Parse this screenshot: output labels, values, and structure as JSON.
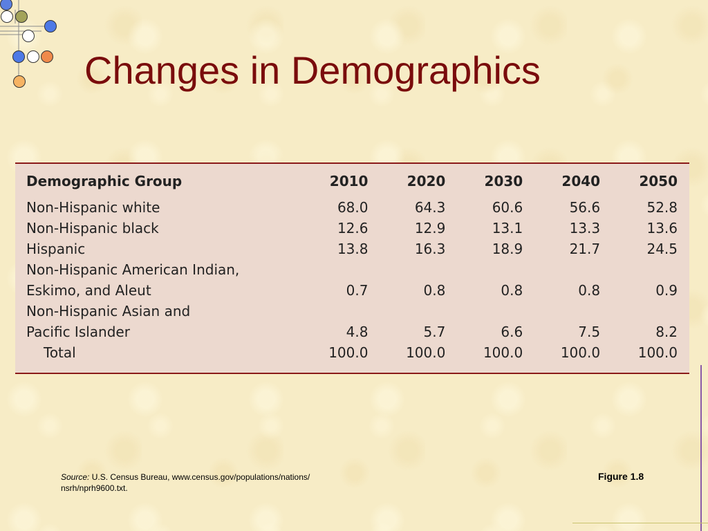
{
  "slide": {
    "title": "Changes in Demographics"
  },
  "table": {
    "headers": [
      "Demographic Group",
      "2010",
      "2020",
      "2030",
      "2040",
      "2050"
    ],
    "rows": [
      {
        "label_lines": [
          "Non-Hispanic white"
        ],
        "values": [
          "68.0",
          "64.3",
          "60.6",
          "56.6",
          "52.8"
        ]
      },
      {
        "label_lines": [
          "Non-Hispanic black"
        ],
        "values": [
          "12.6",
          "12.9",
          "13.1",
          "13.3",
          "13.6"
        ]
      },
      {
        "label_lines": [
          "Hispanic"
        ],
        "values": [
          "13.8",
          "16.3",
          "18.9",
          "21.7",
          "24.5"
        ]
      },
      {
        "label_lines": [
          "Non-Hispanic American Indian,",
          "Eskimo, and Aleut"
        ],
        "values": [
          "0.7",
          "0.8",
          "0.8",
          "0.8",
          "0.9"
        ]
      },
      {
        "label_lines": [
          "Non-Hispanic Asian and",
          "Pacific Islander"
        ],
        "values": [
          "4.8",
          "5.7",
          "6.6",
          "7.5",
          "8.2"
        ]
      }
    ],
    "total": {
      "label": "Total",
      "values": [
        "100.0",
        "100.0",
        "100.0",
        "100.0",
        "100.0"
      ]
    }
  },
  "source": {
    "label": "Source:",
    "line1": "U.S. Census Bureau, www.census.gov/populations/nations/",
    "line2": "nsrh/nprh9600.txt."
  },
  "figure_label": "Figure 1.8",
  "colors": {
    "title": "#7a0c0c",
    "background": "#f7ecc6",
    "table_fill": "#ecd9cf",
    "table_rule": "#8a1a1a"
  }
}
